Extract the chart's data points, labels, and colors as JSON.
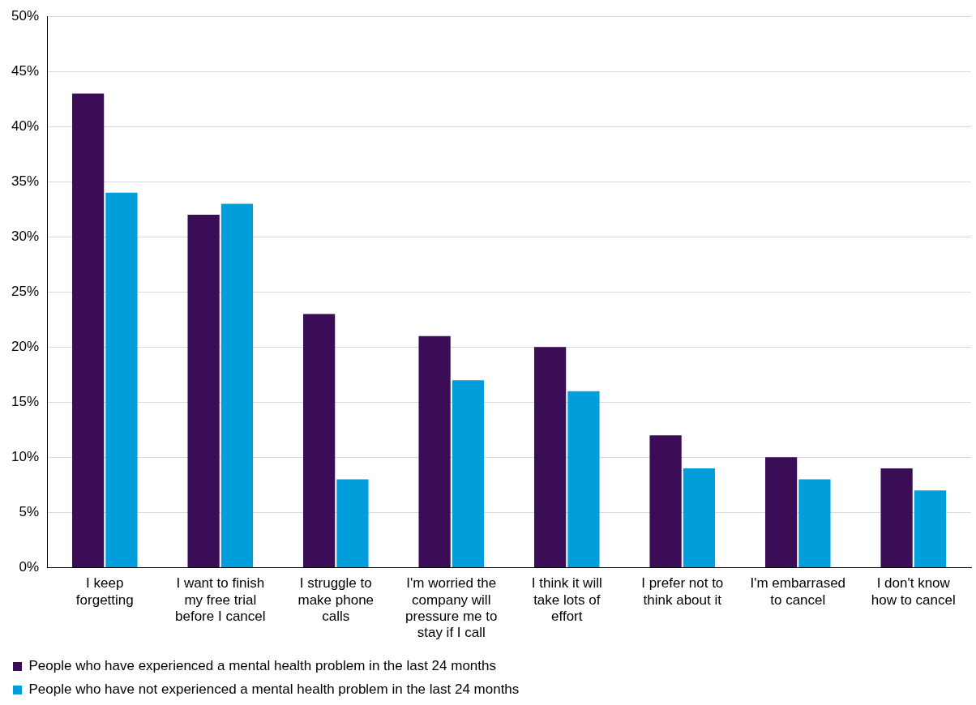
{
  "chart_data": {
    "type": "bar",
    "categories": [
      "I keep forgetting",
      "I want to finish my free trial before I cancel",
      "I struggle to make phone calls",
      "I'm worried the company will pressure me to stay if I call",
      "I think it will take lots of effort",
      "I prefer not to think about it",
      "I'm embarrased to cancel",
      "I don't know how to cancel"
    ],
    "series": [
      {
        "name": "People who have experienced a mental health problem in the last 24 months",
        "color": "#3c0d57",
        "values": [
          43,
          32,
          23,
          21,
          20,
          12,
          10,
          9
        ]
      },
      {
        "name": "People who have not experienced a mental health problem in the last 24 months",
        "color": "#009fdb",
        "values": [
          34,
          33,
          8,
          17,
          16,
          9,
          8,
          7
        ]
      }
    ],
    "ylim": [
      0,
      50
    ],
    "yticks": [
      {
        "value": 0,
        "label": "0%"
      },
      {
        "value": 5,
        "label": "5%"
      },
      {
        "value": 10,
        "label": "10%"
      },
      {
        "value": 15,
        "label": "15%"
      },
      {
        "value": 20,
        "label": "20%"
      },
      {
        "value": 25,
        "label": "25%"
      },
      {
        "value": 30,
        "label": "30%"
      },
      {
        "value": 35,
        "label": "35%"
      },
      {
        "value": 40,
        "label": "40%"
      },
      {
        "value": 45,
        "label": "45%"
      },
      {
        "value": 50,
        "label": "50%"
      }
    ],
    "grid": "y",
    "legend": "bottom"
  }
}
